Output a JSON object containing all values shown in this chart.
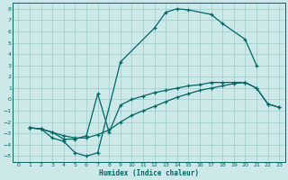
{
  "bg_color": "#cce8e8",
  "grid_color": "#99cccc",
  "line_color": "#006666",
  "xlabel": "Humidex (Indice chaleur)",
  "xlim": [
    -0.5,
    23.5
  ],
  "ylim": [
    -5.5,
    8.5
  ],
  "xticks": [
    0,
    1,
    2,
    3,
    4,
    5,
    6,
    7,
    8,
    9,
    10,
    11,
    12,
    13,
    14,
    15,
    16,
    17,
    18,
    19,
    20,
    21,
    22,
    23
  ],
  "yticks": [
    -5,
    -4,
    -3,
    -2,
    -1,
    0,
    1,
    2,
    3,
    4,
    5,
    6,
    7,
    8
  ],
  "curve1_x": [
    1,
    2,
    3,
    4,
    5,
    6,
    7,
    9,
    12,
    13,
    14,
    15,
    17,
    18,
    20,
    21
  ],
  "curve1_y": [
    -2.5,
    -2.6,
    -3.4,
    -3.7,
    -4.7,
    -5.0,
    -4.7,
    3.3,
    6.3,
    7.7,
    8.0,
    7.9,
    7.5,
    6.7,
    5.3,
    3.0
  ],
  "curve2_x": [
    1,
    2,
    3,
    4,
    5,
    6,
    7,
    8,
    9,
    10,
    11,
    12,
    13,
    14,
    15,
    16,
    17,
    18,
    19,
    20,
    21,
    22,
    23
  ],
  "curve2_y": [
    -2.5,
    -2.6,
    -2.9,
    -3.5,
    -3.5,
    -3.2,
    0.5,
    -2.9,
    -0.5,
    0.0,
    0.3,
    0.6,
    0.8,
    1.0,
    1.2,
    1.3,
    1.5,
    1.5,
    1.5,
    1.5,
    1.0,
    -0.4,
    -0.7
  ],
  "curve3_x": [
    1,
    2,
    3,
    4,
    5,
    6,
    7,
    8,
    9,
    10,
    11,
    12,
    13,
    14,
    15,
    16,
    17,
    18,
    19,
    20,
    21,
    22,
    23
  ],
  "curve3_y": [
    -2.5,
    -2.6,
    -2.9,
    -3.2,
    -3.4,
    -3.4,
    -3.1,
    -2.7,
    -2.0,
    -1.4,
    -1.0,
    -0.6,
    -0.2,
    0.2,
    0.5,
    0.8,
    1.0,
    1.2,
    1.4,
    1.5,
    1.0,
    -0.4,
    -0.7
  ]
}
